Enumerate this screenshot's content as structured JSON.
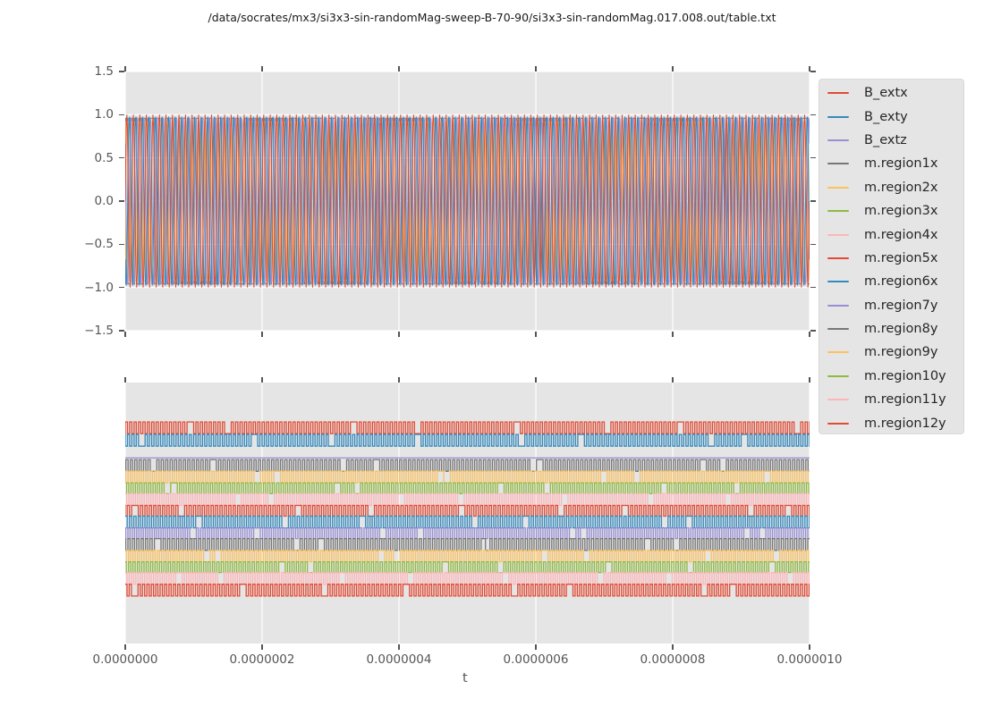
{
  "title": "/data/socrates/mx3/si3x3-sin-randomMag-sweep-B-70-90/si3x3-sin-randomMag.017.008.out/table.txt",
  "colors": {
    "red": "#E24A33",
    "blue": "#348ABD",
    "purple": "#988ED5",
    "gray": "#777777",
    "orange": "#FBC15E",
    "green": "#8EBA42",
    "pink": "#FFB5B8",
    "axes_background": "#E5E5E5",
    "grid": "#FFFFFF",
    "tick_text": "#555555",
    "title_text": "#1a1a1a"
  },
  "legend": {
    "entries": [
      {
        "label": "B_extx",
        "color": "#E24A33"
      },
      {
        "label": "B_exty",
        "color": "#348ABD"
      },
      {
        "label": "B_extz",
        "color": "#988ED5"
      },
      {
        "label": "m.region1x",
        "color": "#777777"
      },
      {
        "label": "m.region2x",
        "color": "#FBC15E"
      },
      {
        "label": "m.region3x",
        "color": "#8EBA42"
      },
      {
        "label": "m.region4x",
        "color": "#FFB5B8"
      },
      {
        "label": "m.region5x",
        "color": "#E24A33"
      },
      {
        "label": "m.region6x",
        "color": "#348ABD"
      },
      {
        "label": "m.region7y",
        "color": "#988ED5"
      },
      {
        "label": "m.region8y",
        "color": "#777777"
      },
      {
        "label": "m.region9y",
        "color": "#FBC15E"
      },
      {
        "label": "m.region10y",
        "color": "#8EBA42"
      },
      {
        "label": "m.region11y",
        "color": "#FFB5B8"
      },
      {
        "label": "m.region12y",
        "color": "#E24A33"
      }
    ]
  },
  "xaxis": {
    "label": "t",
    "tick_labels": [
      "0.0000000",
      "0.0000002",
      "0.0000004",
      "0.0000006",
      "0.0000008",
      "0.0000010"
    ],
    "tick_values": [
      0.0,
      2e-07,
      4e-07,
      6e-07,
      8e-07,
      1e-06
    ]
  },
  "chart_data": [
    {
      "id": "top",
      "type": "line",
      "xlabel": "t",
      "xlim": [
        0,
        1e-06
      ],
      "ylim": [
        -1.5,
        1.5
      ],
      "ytick_labels": [
        "1.5",
        "1.0",
        "0.5",
        "0.0",
        "−0.5",
        "−1.0",
        "−1.5"
      ],
      "ytick_values": [
        1.5,
        1.0,
        0.5,
        0.0,
        -0.5,
        -1.0,
        -1.5
      ],
      "grid": "both",
      "series": [
        {
          "name": "m.region1x",
          "color": "#777777",
          "wave": "square",
          "high": 0.96,
          "low": -0.96,
          "cycles": 155,
          "phase": 0.12,
          "seed": 3
        },
        {
          "name": "m.region2x",
          "color": "#FBC15E",
          "wave": "square",
          "high": 0.92,
          "low": -0.92,
          "cycles": 155,
          "phase": 0.55,
          "seed": 4
        },
        {
          "name": "B_extz",
          "color": "#988ED5",
          "wave": "sine",
          "amplitude": 0.99,
          "cycles": 105,
          "phase": 2.4
        },
        {
          "name": "B_exty",
          "color": "#348ABD",
          "wave": "sine",
          "amplitude": 1.0,
          "cycles": 105,
          "phase": -2.4
        },
        {
          "name": "B_extx",
          "color": "#E24A33",
          "wave": "sine",
          "amplitude": 1.0,
          "cycles": 105,
          "phase": 0.0
        }
      ]
    },
    {
      "id": "bottom",
      "type": "line",
      "xlabel": "t",
      "xlim": [
        0,
        1e-06
      ],
      "ylim": [
        0,
        1
      ],
      "ytick_labels": [],
      "ytick_values": [],
      "grid": "vertical",
      "series": [
        {
          "name": "B_extx",
          "color": "#E24A33",
          "wave": "square",
          "high": 0.849,
          "low": 0.804,
          "cycles": 155,
          "phase": 0.0,
          "seed": 1
        },
        {
          "name": "B_exty",
          "color": "#348ABD",
          "wave": "square",
          "high": 0.801,
          "low": 0.756,
          "cycles": 155,
          "phase": 0.5,
          "seed": 2
        },
        {
          "name": "B_extz",
          "color": "#988ED5",
          "wave": "square",
          "high": 0.711,
          "low": 0.711,
          "cycles": 155,
          "phase": 0.0,
          "seed": 3
        },
        {
          "name": "m.region1x",
          "color": "#777777",
          "wave": "square",
          "high": 0.704,
          "low": 0.66,
          "cycles": 155,
          "phase": 0.15,
          "seed": 4
        },
        {
          "name": "m.region2x",
          "color": "#FBC15E",
          "wave": "square",
          "high": 0.66,
          "low": 0.615,
          "cycles": 155,
          "phase": 0.65,
          "seed": 5
        },
        {
          "name": "m.region3x",
          "color": "#8EBA42",
          "wave": "square",
          "high": 0.615,
          "low": 0.574,
          "cycles": 155,
          "phase": 0.3,
          "seed": 6
        },
        {
          "name": "m.region4x",
          "color": "#FFB5B8",
          "wave": "square",
          "high": 0.574,
          "low": 0.529,
          "cycles": 155,
          "phase": 0.8,
          "seed": 7
        },
        {
          "name": "m.region5x",
          "color": "#E24A33",
          "wave": "square",
          "high": 0.529,
          "low": 0.488,
          "cycles": 155,
          "phase": 0.45,
          "seed": 8
        },
        {
          "name": "m.region6x",
          "color": "#348ABD",
          "wave": "square",
          "high": 0.488,
          "low": 0.443,
          "cycles": 155,
          "phase": 0.95,
          "seed": 9
        },
        {
          "name": "m.region7y",
          "color": "#988ED5",
          "wave": "square",
          "high": 0.443,
          "low": 0.402,
          "cycles": 155,
          "phase": 0.1,
          "seed": 10
        },
        {
          "name": "m.region8y",
          "color": "#777777",
          "wave": "square",
          "high": 0.402,
          "low": 0.357,
          "cycles": 155,
          "phase": 0.6,
          "seed": 11
        },
        {
          "name": "m.region9y",
          "color": "#FBC15E",
          "wave": "square",
          "high": 0.357,
          "low": 0.313,
          "cycles": 155,
          "phase": 0.25,
          "seed": 12
        },
        {
          "name": "m.region10y",
          "color": "#8EBA42",
          "wave": "square",
          "high": 0.313,
          "low": 0.272,
          "cycles": 155,
          "phase": 0.75,
          "seed": 13
        },
        {
          "name": "m.region11y",
          "color": "#FFB5B8",
          "wave": "square",
          "high": 0.272,
          "low": 0.227,
          "cycles": 155,
          "phase": 0.4,
          "seed": 14
        },
        {
          "name": "m.region12y",
          "color": "#E24A33",
          "wave": "square",
          "high": 0.227,
          "low": 0.182,
          "cycles": 155,
          "phase": 0.9,
          "seed": 15
        }
      ]
    }
  ]
}
